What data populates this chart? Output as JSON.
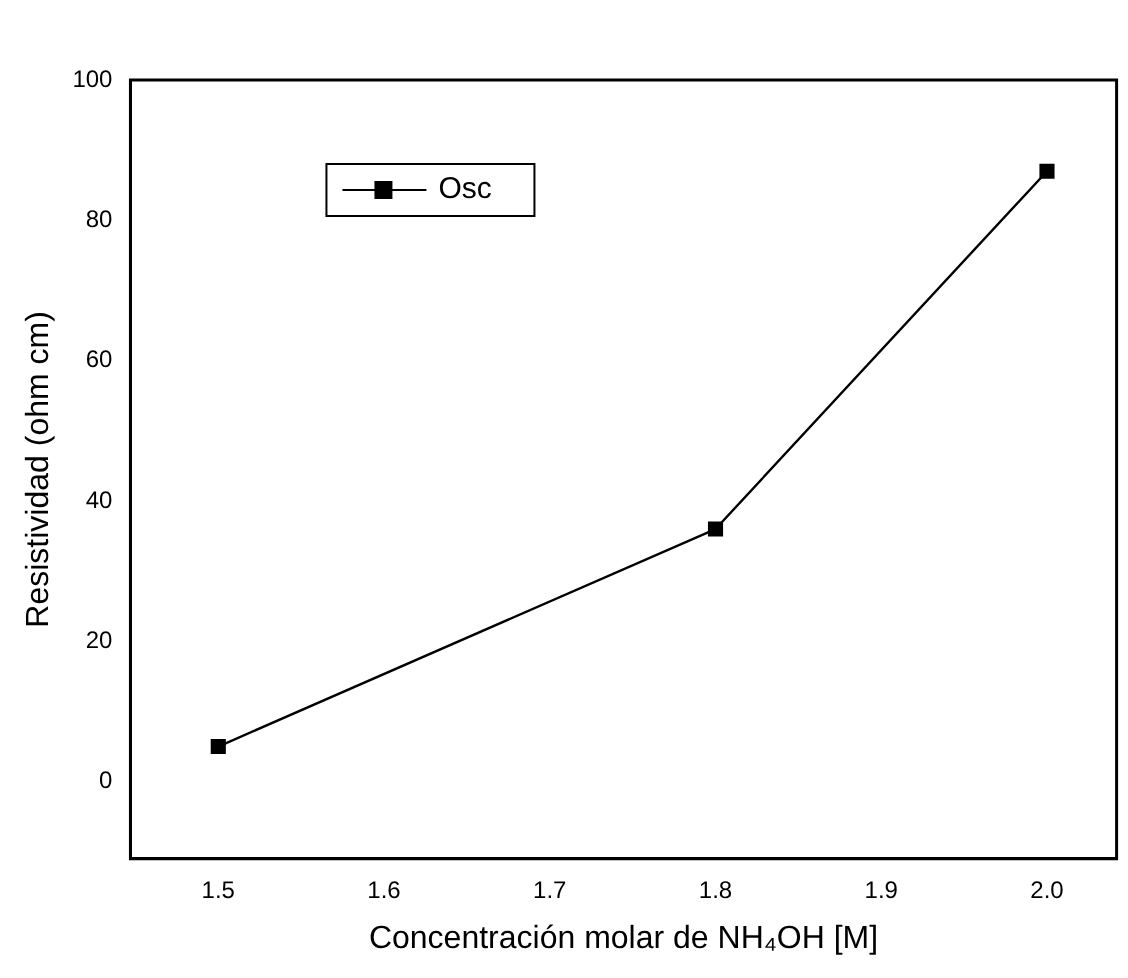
{
  "chart_data": {
    "type": "line",
    "xlabel": "Concentración molar de NH₄OH [M]",
    "ylabel": "Resistividad (ohm cm)",
    "x": [
      1.5,
      1.8,
      2.0
    ],
    "series": [
      {
        "name": "Osc",
        "color": "#000000",
        "values": [
          5,
          36,
          87
        ]
      }
    ],
    "xlim": [
      1.447,
      2.042
    ],
    "xticks": [
      {
        "value": 1.5,
        "label": "1.5"
      },
      {
        "value": 1.6,
        "label": "1.6"
      },
      {
        "value": 1.7,
        "label": "1.7"
      },
      {
        "value": 1.8,
        "label": "1.8"
      },
      {
        "value": 1.9,
        "label": "1.9"
      },
      {
        "value": 2.0,
        "label": "2.0"
      }
    ],
    "ylim": [
      -11,
      100
    ],
    "yticks": [
      0,
      20,
      40,
      60,
      80,
      100
    ],
    "marker": "square",
    "line_style": "solid",
    "legend": "top left",
    "grid": false
  }
}
